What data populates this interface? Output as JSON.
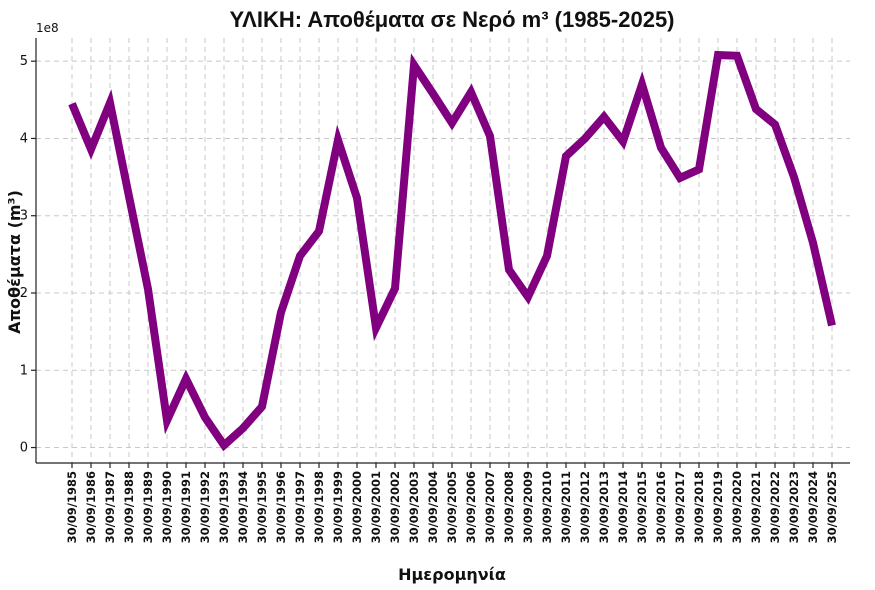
{
  "chart_data": {
    "type": "line",
    "title": "ΥΛΙΚΗ: Αποθέματα σε Νερό m³ (1985-2025)",
    "xlabel": "Ημερομηνία",
    "ylabel": "Αποθέματα (m³)",
    "y_offset_label": "1e8",
    "ylim": [
      -0.2,
      5.3
    ],
    "y_ticks": [
      0,
      1,
      2,
      3,
      4,
      5
    ],
    "grid": true,
    "line_color": "#800080",
    "categories": [
      "30/09/1985",
      "30/09/1986",
      "30/09/1987",
      "30/09/1988",
      "30/09/1989",
      "30/09/1990",
      "30/09/1991",
      "30/09/1992",
      "30/09/1993",
      "30/09/1994",
      "30/09/1995",
      "30/09/1996",
      "30/09/1997",
      "30/09/1998",
      "30/09/1999",
      "30/09/2000",
      "30/09/2001",
      "30/09/2002",
      "30/09/2003",
      "30/09/2004",
      "30/09/2005",
      "30/09/2006",
      "30/09/2007",
      "30/09/2008",
      "30/09/2009",
      "30/09/2010",
      "30/09/2011",
      "30/09/2012",
      "30/09/2013",
      "30/09/2014",
      "30/09/2015",
      "30/09/2016",
      "30/09/2017",
      "30/09/2018",
      "30/09/2019",
      "30/09/2020",
      "30/09/2021",
      "30/09/2022",
      "30/09/2023",
      "30/09/2024",
      "30/09/2025"
    ],
    "series": [
      {
        "values": [
          4.45,
          3.86,
          4.46,
          3.25,
          2.05,
          0.35,
          0.89,
          0.39,
          0.03,
          0.25,
          0.53,
          1.75,
          2.48,
          2.8,
          3.98,
          3.23,
          1.55,
          2.06,
          4.95,
          4.58,
          4.2,
          4.6,
          4.03,
          2.3,
          1.95,
          2.48,
          3.77,
          4.0,
          4.28,
          3.96,
          4.7,
          3.88,
          3.49,
          3.6,
          5.08,
          5.07,
          4.38,
          4.18,
          3.5,
          2.65,
          1.58
        ]
      }
    ]
  }
}
